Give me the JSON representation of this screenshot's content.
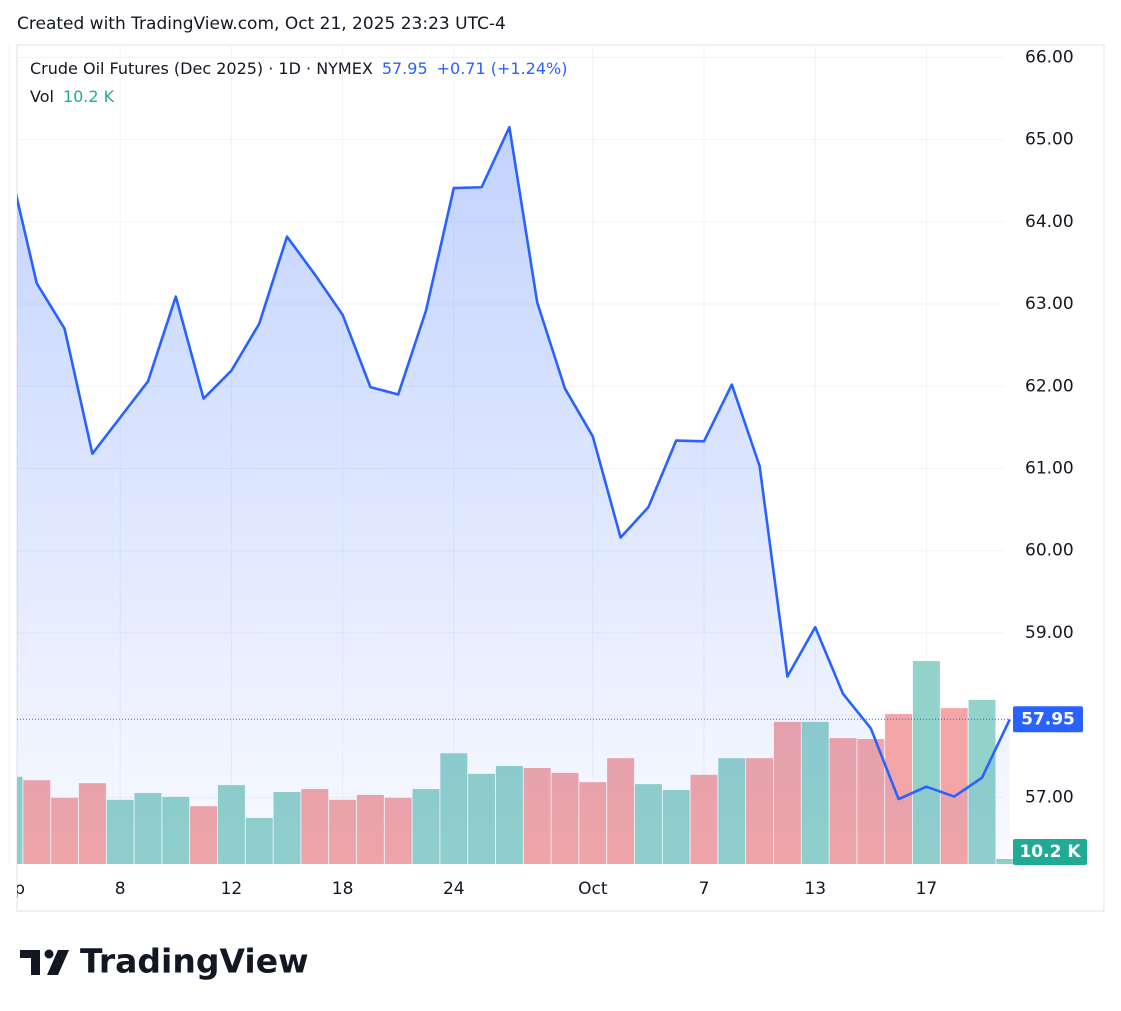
{
  "header": "Created with TradingView.com, Oct 21, 2025 23:23 UTC-4",
  "chart_data": {
    "type": "line",
    "title": "Crude Oil Futures (Dec 2025) · 1D · NYMEX",
    "change_label": "+0.71 (+1.24%)",
    "categories": [
      "Sep",
      null,
      null,
      null,
      "8",
      null,
      null,
      null,
      "12",
      null,
      null,
      null,
      "18",
      null,
      null,
      null,
      "24",
      null,
      null,
      null,
      null,
      "Oct",
      null,
      null,
      null,
      "7",
      null,
      null,
      null,
      "13",
      null,
      null,
      null,
      "17",
      null,
      null,
      null
    ],
    "series": [
      {
        "color": "#2962ff",
        "area": true,
        "values": [
          64.7,
          63.25,
          62.7,
          61.18,
          61.62,
          62.06,
          63.09,
          61.85,
          62.19,
          62.76,
          63.82,
          63.36,
          62.87,
          61.99,
          61.9,
          62.92,
          64.41,
          64.42,
          65.15,
          63.02,
          61.97,
          61.39,
          60.16,
          60.53,
          61.34,
          61.33,
          62.02,
          61.03,
          58.47,
          59.07,
          58.26,
          57.84,
          56.98,
          57.13,
          57.01,
          57.24,
          57.95
        ]
      },
      {
        "name": "Vol",
        "type": "bar",
        "axis": "volume",
        "label_color": "#22ab94",
        "colors": [
          "#92d2ca",
          "#f4a6a6",
          "#f4a6a6",
          "#f4a6a6",
          "#92d2ca",
          "#92d2ca",
          "#92d2ca",
          "#f4a6a6",
          "#92d2ca",
          "#92d2ca",
          "#92d2ca",
          "#f4a6a6",
          "#f4a6a6",
          "#f4a6a6",
          "#f4a6a6",
          "#92d2ca",
          "#92d2ca",
          "#92d2ca",
          "#92d2ca",
          "#f4a6a6",
          "#f4a6a6",
          "#f4a6a6",
          "#f4a6a6",
          "#92d2ca",
          "#92d2ca",
          "#f4a6a6",
          "#92d2ca",
          "#f4a6a6",
          "#f4a6a6",
          "#92d2ca",
          "#f4a6a6",
          "#f4a6a6",
          "#f4a6a6",
          "#92d2ca",
          "#f4a6a6",
          "#92d2ca",
          "#92d2ca"
        ],
        "values": [
          178,
          171,
          135,
          165,
          131,
          145,
          137,
          118,
          161,
          94,
          147,
          153,
          131,
          141,
          135,
          153,
          226,
          184,
          200,
          196,
          186,
          167,
          216,
          163,
          151,
          182,
          216,
          216,
          290,
          290,
          257,
          255,
          306,
          414,
          318,
          335,
          10.2
        ],
        "value_labels": [
          null,
          null,
          null,
          null,
          null,
          null,
          null,
          null,
          null,
          null,
          null,
          null,
          null,
          null,
          null,
          null,
          null,
          null,
          null,
          null,
          null,
          null,
          null,
          null,
          null,
          null,
          null,
          null,
          null,
          null,
          null,
          null,
          null,
          null,
          null,
          null,
          "10.2 K"
        ]
      }
    ],
    "ylim": [
      56.19,
      66.15
    ],
    "yticks": [
      {
        "value": 57,
        "label": "57.00"
      },
      {
        "value": 58,
        "label": "58.00"
      },
      {
        "value": 59,
        "label": "59.00"
      },
      {
        "value": 60,
        "label": "60.00"
      },
      {
        "value": 61,
        "label": "61.00"
      },
      {
        "value": 62,
        "label": "62.00"
      },
      {
        "value": 63,
        "label": "63.00"
      },
      {
        "value": 64,
        "label": "64.00"
      },
      {
        "value": 65,
        "label": "65.00"
      },
      {
        "value": 66,
        "label": "66.00"
      }
    ],
    "grid": true,
    "last_price_line": true
  },
  "brand": "TradingView"
}
